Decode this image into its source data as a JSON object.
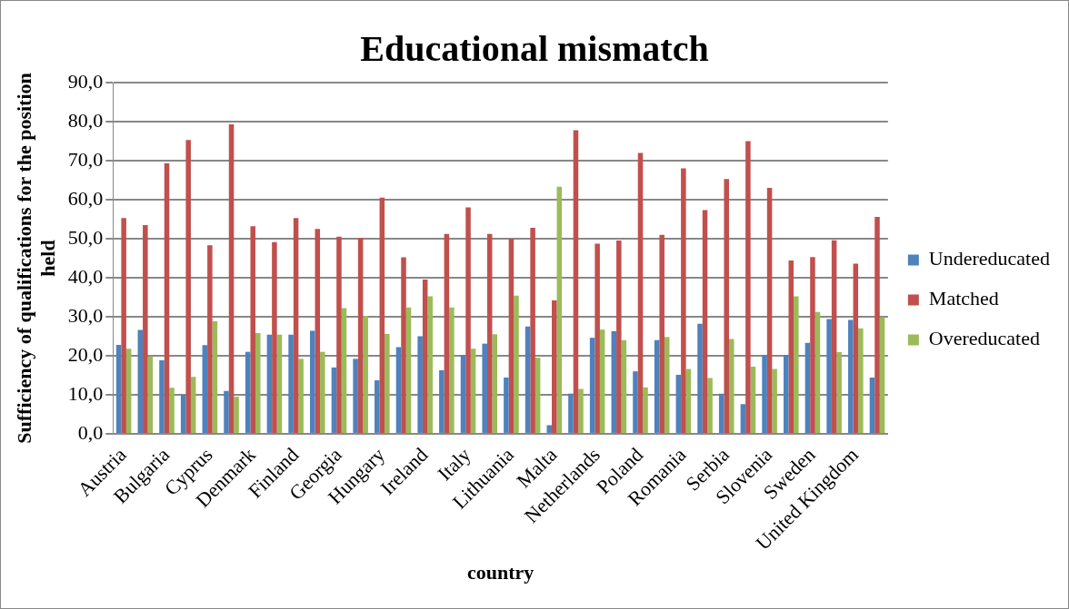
{
  "chart_data": {
    "type": "bar",
    "title": "Educational mismatch",
    "xlabel": "country",
    "ylabel": "Sufficiency of qualifications for the position held",
    "categories": [
      "Austria",
      null,
      "Bulgaria",
      null,
      "Cyprus",
      null,
      "Denmark",
      null,
      "Finland",
      null,
      "Georgia",
      null,
      "Hungary",
      null,
      "Ireland",
      null,
      "Italy",
      null,
      "Lithuania",
      null,
      "Malta",
      null,
      "Netherlands",
      null,
      "Poland",
      null,
      "Romania",
      null,
      "Serbia",
      null,
      "Slovenia",
      null,
      "Sweden",
      null,
      "United Kingdom",
      null
    ],
    "series": [
      {
        "name": "Undereducated",
        "color": "#4f81bd",
        "values": [
          22.8,
          26.6,
          18.8,
          10.0,
          22.7,
          11.0,
          21.0,
          25.4,
          25.4,
          26.4,
          17.0,
          19.2,
          13.7,
          22.2,
          25.0,
          16.3,
          20.2,
          23.1,
          14.4,
          27.5,
          2.2,
          10.3,
          24.6,
          26.3,
          16.0,
          24.0,
          15.1,
          28.2,
          10.3,
          7.6,
          20.2,
          20.2,
          23.3,
          29.4,
          29.2,
          14.4
        ]
      },
      {
        "name": "Matched",
        "color": "#c0504d",
        "values": [
          55.3,
          53.5,
          69.3,
          75.3,
          48.3,
          79.3,
          53.2,
          49.1,
          55.3,
          52.5,
          50.5,
          50.2,
          60.5,
          45.2,
          39.5,
          51.2,
          58.0,
          51.2,
          50.0,
          52.8,
          34.2,
          77.8,
          48.7,
          49.5,
          72.0,
          51.0,
          68.0,
          57.3,
          65.3,
          75.0,
          63.0,
          44.4,
          45.3,
          49.6,
          43.6,
          55.6
        ]
      },
      {
        "name": "Overeducated",
        "color": "#9bbb59",
        "values": [
          21.8,
          19.8,
          11.8,
          14.6,
          28.8,
          9.5,
          25.8,
          25.4,
          19.2,
          21.0,
          32.2,
          30.2,
          25.6,
          32.4,
          35.2,
          32.4,
          21.8,
          25.5,
          35.4,
          19.5,
          63.3,
          11.5,
          26.7,
          24.0,
          11.9,
          24.8,
          16.6,
          14.3,
          24.3,
          17.2,
          16.6,
          35.2,
          31.2,
          20.9,
          27.0,
          29.9
        ]
      }
    ],
    "ylim": [
      0,
      90
    ],
    "yticks": [
      {
        "value": 0,
        "label": "0,0"
      },
      {
        "value": 10,
        "label": "10,0"
      },
      {
        "value": 20,
        "label": "20,0"
      },
      {
        "value": 30,
        "label": "30,0"
      },
      {
        "value": 40,
        "label": "40,0"
      },
      {
        "value": 50,
        "label": "50,0"
      },
      {
        "value": 60,
        "label": "60,0"
      },
      {
        "value": 70,
        "label": "70,0"
      },
      {
        "value": 80,
        "label": "80,0"
      },
      {
        "value": 90,
        "label": "90,0"
      }
    ],
    "grid": "y",
    "legend": "right"
  }
}
